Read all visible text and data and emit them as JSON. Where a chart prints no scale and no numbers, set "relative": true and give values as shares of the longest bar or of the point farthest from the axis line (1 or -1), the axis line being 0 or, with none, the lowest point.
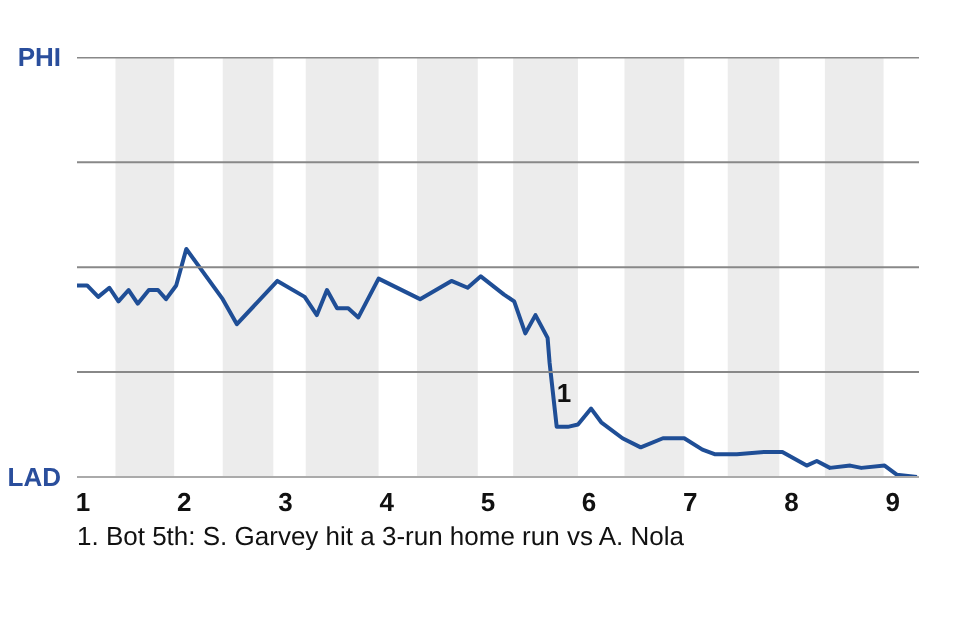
{
  "chart_data": {
    "type": "line",
    "relative": true,
    "x": [
      0.94,
      1.04,
      1.15,
      1.26,
      1.35,
      1.45,
      1.54,
      1.65,
      1.74,
      1.82,
      1.92,
      2.02,
      2.38,
      2.52,
      2.92,
      3.19,
      3.31,
      3.41,
      3.51,
      3.62,
      3.72,
      3.92,
      4.33,
      4.64,
      4.8,
      4.93,
      5.16,
      5.26,
      5.37,
      5.47,
      5.59,
      5.61,
      5.68,
      5.79,
      5.89,
      6.02,
      6.12,
      6.33,
      6.51,
      6.73,
      6.94,
      7.12,
      7.24,
      7.46,
      7.73,
      7.91,
      8.15,
      8.25,
      8.38,
      8.58,
      8.69,
      8.92,
      9.04,
      9.24
    ],
    "series": [
      {
        "color": "#1f4e96",
        "values": [
          0.84,
          0.84,
          0.79,
          0.83,
          0.77,
          0.82,
          0.76,
          0.82,
          0.82,
          0.78,
          0.84,
          1,
          0.78,
          0.67,
          0.86,
          0.79,
          0.71,
          0.82,
          0.74,
          0.74,
          0.7,
          0.87,
          0.78,
          0.86,
          0.83,
          0.88,
          0.8,
          0.77,
          0.63,
          0.71,
          0.61,
          0.5,
          0.22,
          0.22,
          0.23,
          0.3,
          0.24,
          0.17,
          0.13,
          0.17,
          0.17,
          0.12,
          0.1,
          0.1,
          0.11,
          0.11,
          0.05,
          0.07,
          0.04,
          0.05,
          0.04,
          0.05,
          0.01,
          0
        ]
      }
    ],
    "xlim": [
      0.94,
      9.26
    ],
    "xticks": [
      1,
      2,
      3,
      4,
      5,
      6,
      7,
      8,
      9
    ],
    "ref_lines": [
      {
        "axis": "y",
        "value": 0.46,
        "color": "#888888"
      },
      {
        "axis": "y",
        "value": 0.92,
        "color": "#888888"
      },
      {
        "axis": "y",
        "value": 1.38,
        "color": "#888888"
      },
      {
        "axis": "y",
        "value": 1.84,
        "color": "#888888"
      }
    ],
    "bands": [
      {
        "axis": "x",
        "from": 1.32,
        "to": 1.9,
        "color": "#ececec"
      },
      {
        "axis": "x",
        "from": 2.38,
        "to": 2.88,
        "color": "#ececec"
      },
      {
        "axis": "x",
        "from": 3.2,
        "to": 3.92,
        "color": "#ececec"
      },
      {
        "axis": "x",
        "from": 4.3,
        "to": 4.9,
        "color": "#ececec"
      },
      {
        "axis": "x",
        "from": 5.25,
        "to": 5.89,
        "color": "#ececec"
      },
      {
        "axis": "x",
        "from": 6.35,
        "to": 6.94,
        "color": "#ececec"
      },
      {
        "axis": "x",
        "from": 7.37,
        "to": 7.88,
        "color": "#ececec"
      },
      {
        "axis": "x",
        "from": 8.33,
        "to": 8.91,
        "color": "#ececec"
      }
    ],
    "annotations": [
      "PHI",
      "LAD",
      {
        "text": "1",
        "x": 5.68,
        "y": 0.37
      },
      "1. Bot 5th: S. Garvey hit a 3-run home run vs A. Nola"
    ]
  }
}
